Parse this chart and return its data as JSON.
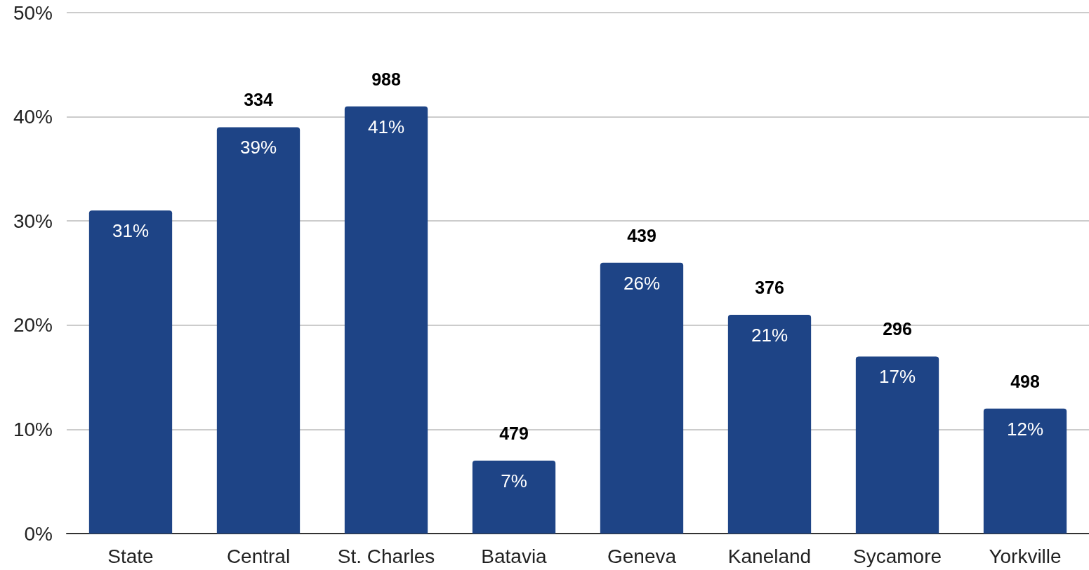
{
  "chart_data": {
    "type": "bar",
    "categories": [
      "State",
      "Central",
      "St. Charles",
      "Batavia",
      "Geneva",
      "Kaneland",
      "Sycamore",
      "Yorkville"
    ],
    "values": [
      31,
      39,
      41,
      7,
      26,
      21,
      17,
      12
    ],
    "color": "#1e4486",
    "value_labels": [
      "31%",
      "39%",
      "41%",
      "7%",
      "26%",
      "21%",
      "17%",
      "12%"
    ],
    "ylim": [
      0,
      50
    ],
    "yticks": [
      {
        "value": 0,
        "label": "0%"
      },
      {
        "value": 10,
        "label": "10%"
      },
      {
        "value": 20,
        "label": "20%"
      },
      {
        "value": 30,
        "label": "30%"
      },
      {
        "value": 40,
        "label": "40%"
      },
      {
        "value": 50,
        "label": "50%"
      }
    ],
    "grid": "y",
    "annotations": [
      {
        "text": "334",
        "x": "Central",
        "y": 39
      },
      {
        "text": "988",
        "x": "St. Charles",
        "y": 41
      },
      {
        "text": "479",
        "x": "Batavia",
        "y": 7
      },
      {
        "text": "439",
        "x": "Geneva",
        "y": 26
      },
      {
        "text": "376",
        "x": "Kaneland",
        "y": 21
      },
      {
        "text": "296",
        "x": "Sycamore",
        "y": 17
      },
      {
        "text": "498",
        "x": "Yorkville",
        "y": 12
      }
    ]
  }
}
